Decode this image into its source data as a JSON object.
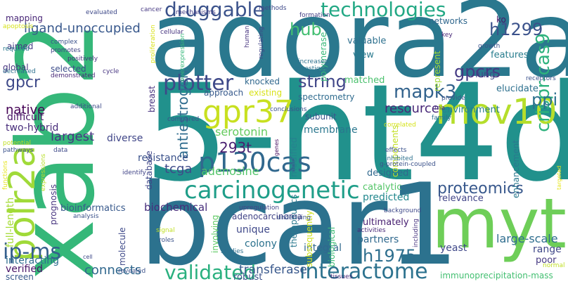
{
  "words": [
    {
      "text": "5-ht4d",
      "color": "#21918c"
    },
    {
      "text": "adora2a",
      "color": "#2a788e"
    },
    {
      "text": "bcar1",
      "color": "#2c728e"
    },
    {
      "text": "xab2",
      "color": "#35b779"
    },
    {
      "text": "myth",
      "color": "#6ece58"
    },
    {
      "text": "polr2a",
      "color": "#a0da39"
    },
    {
      "text": "mov10",
      "color": "#b5de2b"
    },
    {
      "text": "gpr37",
      "color": "#c8e020"
    },
    {
      "text": "carcinogenetic",
      "color": "#1f9e89"
    },
    {
      "text": "p130cas",
      "color": "#31688e"
    },
    {
      "text": "druggable",
      "color": "#3b528b"
    },
    {
      "text": "technologies",
      "color": "#22a884"
    },
    {
      "text": "validated",
      "color": "#2ab07f"
    },
    {
      "text": "interactome",
      "color": "#2c728e"
    },
    {
      "text": "plotter",
      "color": "#3e4989"
    },
    {
      "text": "ip-ms",
      "color": "#355f8d"
    },
    {
      "text": "crispr-cas9",
      "color": "#2db27d"
    },
    {
      "text": "mapk3",
      "color": "#33638d"
    },
    {
      "text": "gpcrs",
      "color": "#443983"
    },
    {
      "text": "proteomics",
      "color": "#38588c"
    },
    {
      "text": "h1299",
      "color": "#3b528b"
    },
    {
      "text": "h1975",
      "color": "#2e6f8e"
    },
    {
      "text": "hub",
      "color": "#42be71"
    },
    {
      "text": "string",
      "color": "#404688"
    },
    {
      "text": "293t",
      "color": "#481f70"
    },
    {
      "text": "ppi",
      "color": "#2c728e"
    },
    {
      "text": "antiestrogen",
      "color": "#2f6c8e"
    },
    {
      "text": "gpcr",
      "color": "#3e4989"
    },
    {
      "text": "ligand-unoccupied",
      "color": "#38588c"
    },
    {
      "text": "resource",
      "color": "#482878"
    },
    {
      "text": "largest",
      "color": "#453781"
    },
    {
      "text": "adenosine",
      "color": "#52c569"
    },
    {
      "text": "serotonin",
      "color": "#65cb5e"
    },
    {
      "text": "tcga",
      "color": "#3e4a89"
    },
    {
      "text": "transferase",
      "color": "#38588c"
    },
    {
      "text": "connects",
      "color": "#31688e"
    },
    {
      "text": "native",
      "color": "#440154"
    },
    {
      "text": "full-length",
      "color": "#a5db36"
    },
    {
      "text": "verified",
      "color": "#481467"
    },
    {
      "text": "resistance",
      "color": "#3b528b"
    },
    {
      "text": "diverse",
      "color": "#404688"
    },
    {
      "text": "two-hybrid",
      "color": "#472c7a"
    },
    {
      "text": "difficult",
      "color": "#471365"
    },
    {
      "text": "bioinformatics",
      "color": "#38598c"
    },
    {
      "text": "adenocarcinoma",
      "color": "#414487"
    },
    {
      "text": "colony",
      "color": "#2c728e"
    },
    {
      "text": "unique",
      "color": "#3f4889"
    },
    {
      "text": "biochemical",
      "color": "#472d7b"
    },
    {
      "text": "ultimately",
      "color": "#482071"
    },
    {
      "text": "partners",
      "color": "#30698e"
    },
    {
      "text": "integral",
      "color": "#31688e"
    },
    {
      "text": "catalytic",
      "color": "#54c568"
    },
    {
      "text": "predicted",
      "color": "#23888e"
    },
    {
      "text": "designed",
      "color": "#31688e"
    },
    {
      "text": "membrane",
      "color": "#2a778e"
    },
    {
      "text": "large-scale",
      "color": "#2e6d8e"
    },
    {
      "text": "relevance",
      "color": "#414487"
    },
    {
      "text": "environment",
      "color": "#277f8e"
    },
    {
      "text": "enhancement",
      "color": "#2a788e"
    },
    {
      "text": "range",
      "color": "#3f4788"
    },
    {
      "text": "poor",
      "color": "#453882"
    },
    {
      "text": "yeast",
      "color": "#3f4889"
    },
    {
      "text": "elucidate.",
      "color": "#2d708e"
    },
    {
      "text": "features",
      "color": "#287d8e"
    },
    {
      "text": "lung",
      "color": "#3f4788"
    },
    {
      "text": "valuable",
      "color": "#2d708e"
    },
    {
      "text": "view",
      "color": "#297a8e"
    },
    {
      "text": "matched",
      "color": "#4ac16d"
    },
    {
      "text": "networks",
      "color": "#31688e"
    },
    {
      "text": "ko",
      "color": "#481668"
    },
    {
      "text": "represent",
      "color": "#a2da37"
    },
    {
      "text": "knocked",
      "color": "#31688e"
    },
    {
      "text": "existing",
      "color": "#d8e219"
    },
    {
      "text": "spectrometry",
      "color": "#2f6b8e"
    },
    {
      "text": "subunit",
      "color": "#3a548c"
    },
    {
      "text": "approach",
      "color": "#375a8c"
    },
    {
      "text": "aimed",
      "color": "#443a83"
    },
    {
      "text": "mapping",
      "color": "#482677"
    },
    {
      "text": "selected",
      "color": "#3d4d8a"
    },
    {
      "text": "global",
      "color": "#46327e"
    },
    {
      "text": "modified",
      "color": "#26828e"
    },
    {
      "text": "therapeutics",
      "color": "#2a788e"
    },
    {
      "text": "components",
      "color": "#c2df23"
    },
    {
      "text": "subsequently",
      "color": "#d0e11c"
    },
    {
      "text": "biological",
      "color": "#3dbc74"
    },
    {
      "text": "involving",
      "color": "#5ec962"
    },
    {
      "text": "molecule",
      "color": "#3e4989"
    },
    {
      "text": "prognosis",
      "color": "#46337f"
    },
    {
      "text": "interacting",
      "color": "#2e6e8e"
    },
    {
      "text": "screen",
      "color": "#38598c"
    },
    {
      "text": "robust",
      "color": "#3b528b"
    },
    {
      "text": "immunoprecipitation-mass",
      "color": "#43bf71"
    },
    {
      "text": "polymerase",
      "color": "#37b878"
    },
    {
      "text": "database",
      "color": "#404688"
    },
    {
      "text": "breast",
      "color": "#46307e"
    },
    {
      "text": "evaluated",
      "color": "#3e4989"
    },
    {
      "text": "mechanisms",
      "color": "#433d84"
    },
    {
      "text": "cancer",
      "color": "#453882"
    },
    {
      "text": "apoptosis",
      "color": "#d5e21a"
    },
    {
      "text": "complex",
      "color": "#3b528b"
    },
    {
      "text": "required",
      "color": "#2a788e"
    },
    {
      "text": "promotes",
      "color": "#414487"
    },
    {
      "text": "positively",
      "color": "#46327e"
    },
    {
      "text": "decreased",
      "color": "#2d708e"
    },
    {
      "text": "demonstrated",
      "color": "#482878"
    },
    {
      "text": "cycle",
      "color": "#463480"
    },
    {
      "text": "additional",
      "color": "#3e4a89"
    },
    {
      "text": "potential",
      "color": "#c0df25"
    },
    {
      "text": "pathways",
      "color": "#3b528b"
    },
    {
      "text": "functions",
      "color": "#e5e419"
    },
    {
      "text": "expressions",
      "color": "#b8de29"
    },
    {
      "text": "data",
      "color": "#3e4989"
    },
    {
      "text": "genes",
      "color": "#470d60"
    },
    {
      "text": "identify",
      "color": "#414487"
    },
    {
      "text": "compared",
      "color": "#3b528b"
    },
    {
      "text": "conclusions",
      "color": "#3b528b"
    },
    {
      "text": "cellular",
      "color": "#46337f"
    },
    {
      "text": "proliferation",
      "color": "#d8e219"
    },
    {
      "text": "overexpression",
      "color": "#35b779"
    },
    {
      "text": "human",
      "color": "#46337f"
    },
    {
      "text": "regulating",
      "color": "#414487"
    },
    {
      "text": "methods",
      "color": "#3e4989"
    },
    {
      "text": "formation",
      "color": "#433e85"
    },
    {
      "text": "increased",
      "color": "#2d708e"
    },
    {
      "text": "investigate",
      "color": "#2c728e"
    },
    {
      "text": "key",
      "color": "#482878"
    },
    {
      "text": "growth",
      "color": "#3b528b"
    },
    {
      "text": "receptors",
      "color": "#3b528b"
    },
    {
      "text": "provide",
      "color": "#3b528b"
    },
    {
      "text": "rna",
      "color": "#46337f"
    },
    {
      "text": "family",
      "color": "#2d708e"
    },
    {
      "text": "correlated",
      "color": "#d5e21a"
    },
    {
      "text": "effects",
      "color": "#3b528b"
    },
    {
      "text": "inhibited",
      "color": "#2d708e"
    },
    {
      "text": "g-protein-coupled",
      "color": "#3b528b"
    },
    {
      "text": "targeted",
      "color": "#e5e419"
    },
    {
      "text": "background",
      "color": "#3e4989"
    },
    {
      "text": "upregulation",
      "color": "#414487"
    },
    {
      "text": "underlying",
      "color": "#3b528b"
    },
    {
      "text": "activities",
      "color": "#482878"
    },
    {
      "text": "including",
      "color": "#46337f"
    },
    {
      "text": "analysis",
      "color": "#3b528b"
    },
    {
      "text": "signal",
      "color": "#c0df25"
    },
    {
      "text": "roles",
      "color": "#3b528b"
    },
    {
      "text": "studies",
      "color": "#2d708e"
    },
    {
      "text": "cell",
      "color": "#3e4989"
    },
    {
      "text": "revealed",
      "color": "#3b528b"
    },
    {
      "text": "tissues",
      "color": "#482878"
    },
    {
      "text": "normal",
      "color": "#c0df25"
    }
  ]
}
